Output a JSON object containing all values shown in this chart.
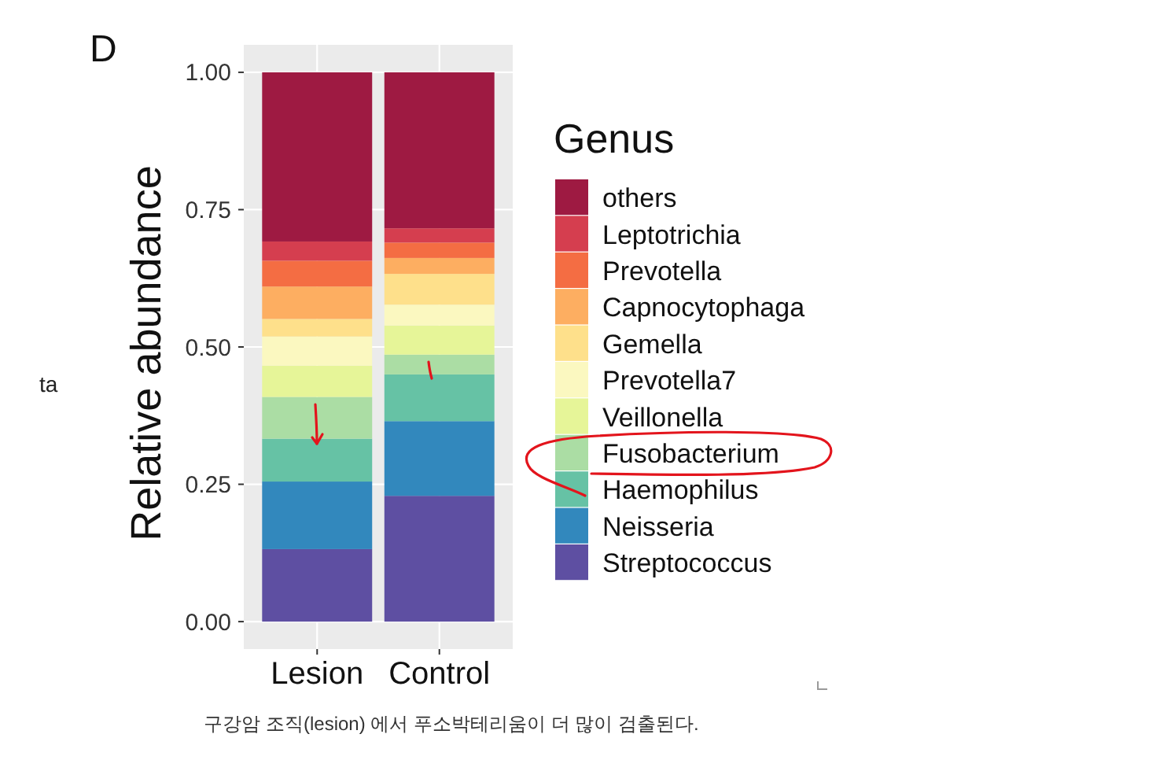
{
  "chart_data": {
    "type": "bar",
    "stacked": true,
    "categories": [
      "Lesion",
      "Control"
    ],
    "series": [
      {
        "name": "Streptococcus",
        "color": "#5e4fa2",
        "values": [
          0.132,
          0.229
        ]
      },
      {
        "name": "Neisseria",
        "color": "#3288bd",
        "values": [
          0.123,
          0.136
        ]
      },
      {
        "name": "Haemophilus",
        "color": "#66c2a5",
        "values": [
          0.078,
          0.085
        ]
      },
      {
        "name": "Fusobacterium",
        "color": "#abdda4",
        "values": [
          0.076,
          0.036
        ]
      },
      {
        "name": "Veillonella",
        "color": "#e6f598",
        "values": [
          0.057,
          0.053
        ]
      },
      {
        "name": "Prevotella7",
        "color": "#fbf8c0",
        "values": [
          0.053,
          0.038
        ]
      },
      {
        "name": "Gemella",
        "color": "#fee08b",
        "values": [
          0.032,
          0.056
        ]
      },
      {
        "name": "Capnocytophaga",
        "color": "#fdae61",
        "values": [
          0.059,
          0.029
        ]
      },
      {
        "name": "Prevotella",
        "color": "#f46d43",
        "values": [
          0.047,
          0.028
        ]
      },
      {
        "name": "Leptotrichia",
        "color": "#d53e4f",
        "values": [
          0.035,
          0.026
        ]
      },
      {
        "name": "others",
        "color": "#9e1a42",
        "values": [
          0.308,
          0.284
        ]
      }
    ],
    "ylabel": "Relative abundance",
    "legend_title": "Genus",
    "legend": "right",
    "ylim": [
      -0.05,
      1.05
    ],
    "yticks": [
      {
        "value": 0,
        "label": "0.00"
      },
      0.25,
      {
        "value": 0.5,
        "label": "0.50"
      },
      0.75,
      {
        "value": 1,
        "label": "1.00"
      }
    ],
    "grid": true,
    "annotations": [
      "D",
      "ta",
      "구강암 조직(lesion) 에서 푸소박테리움이 더 많이 검출된다."
    ]
  }
}
